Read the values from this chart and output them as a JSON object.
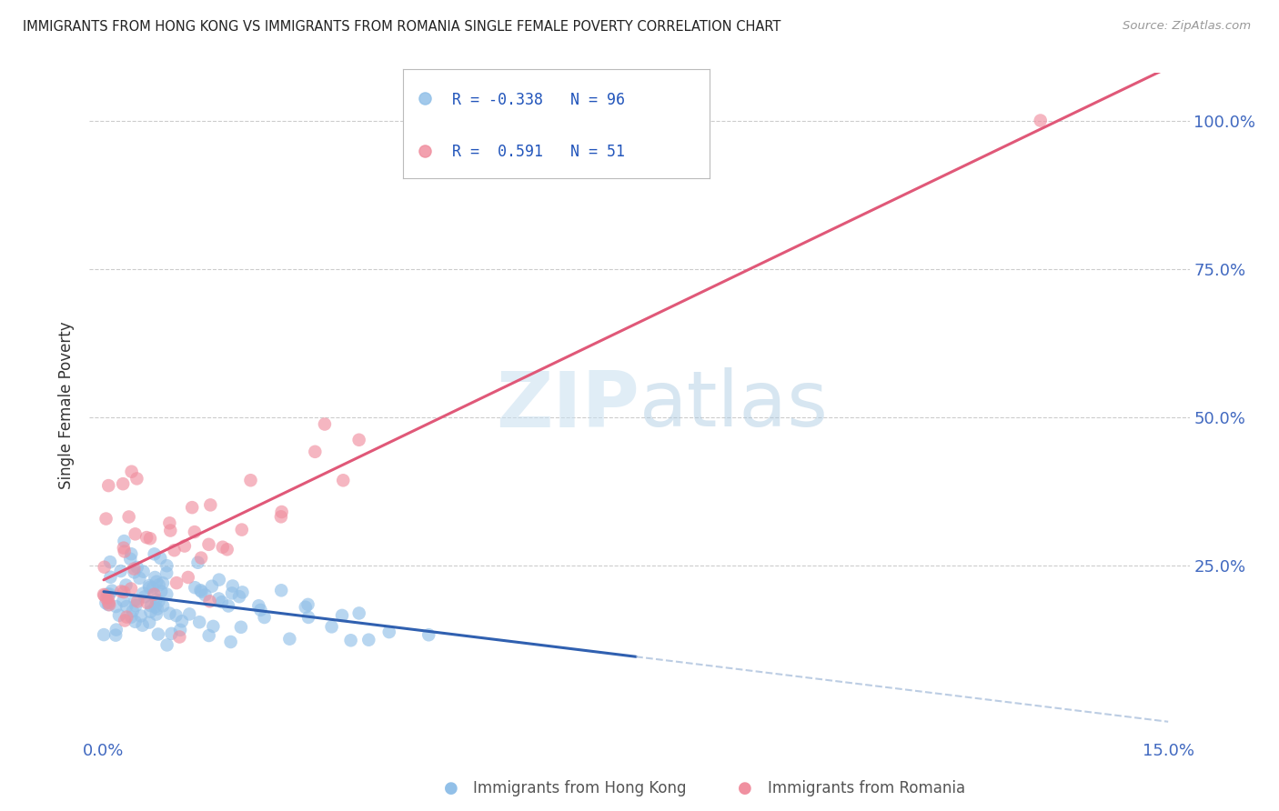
{
  "title": "IMMIGRANTS FROM HONG KONG VS IMMIGRANTS FROM ROMANIA SINGLE FEMALE POVERTY CORRELATION CHART",
  "source": "Source: ZipAtlas.com",
  "ylabel": "Single Female Poverty",
  "hk_color": "#92c0e8",
  "ro_color": "#f090a0",
  "hk_line_color": "#3060b0",
  "ro_line_color": "#e05878",
  "hk_dash_color": "#a0b8d8",
  "hk_R": -0.338,
  "hk_N": 96,
  "ro_R": 0.591,
  "ro_N": 51,
  "xmin": 0.0,
  "xmax": 0.15,
  "ymin": 0.0,
  "ymax": 1.05,
  "yticks": [
    0.0,
    0.25,
    0.5,
    0.75,
    1.0
  ],
  "ytick_labels_right": [
    "",
    "25.0%",
    "50.0%",
    "75.0%",
    "100.0%"
  ],
  "xtick_labels": [
    "0.0%",
    "",
    "",
    "",
    "",
    "15.0%"
  ],
  "hk_line_x_solid_end": 0.075,
  "hk_line_x_dash_start": 0.075,
  "ro_line_x_end": 0.15,
  "watermark_text": "ZIPatlas",
  "legend_label_hk": "R = -0.338   N = 96",
  "legend_label_ro": "R =  0.591   N = 51",
  "bottom_legend_hk": "Immigrants from Hong Kong",
  "bottom_legend_ro": "Immigrants from Romania"
}
